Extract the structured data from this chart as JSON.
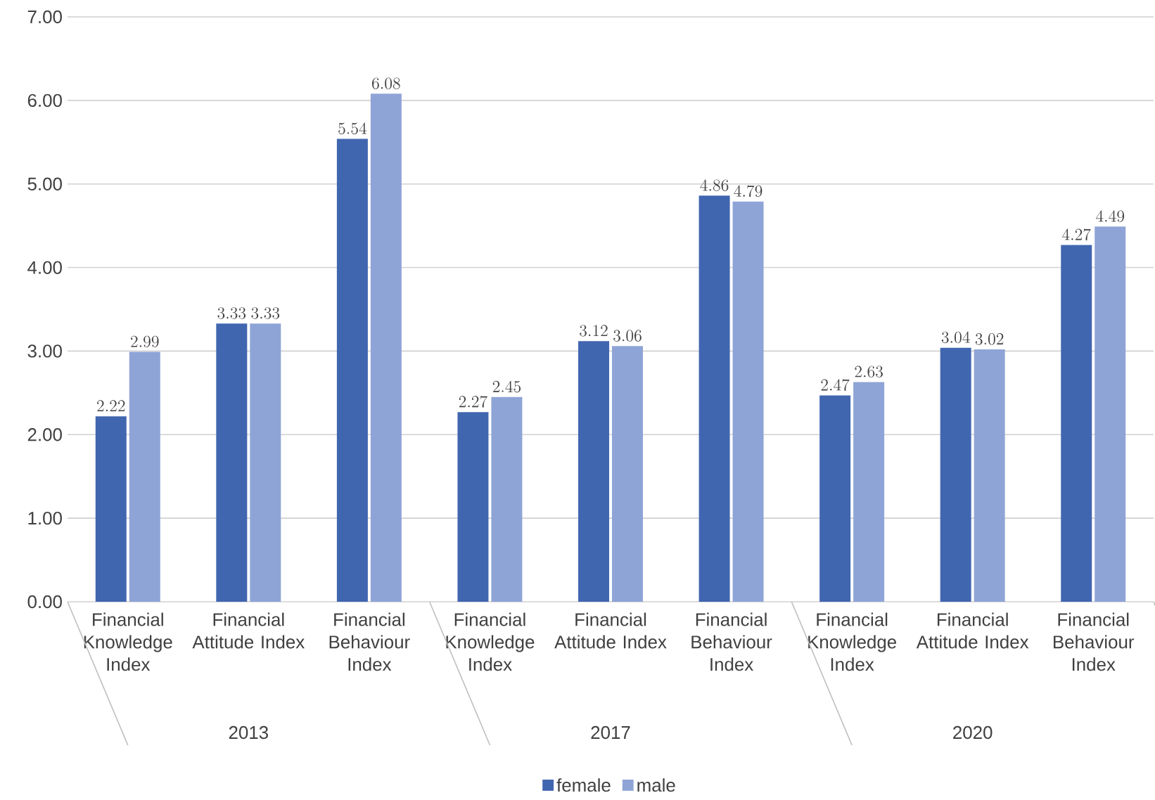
{
  "chart_data": {
    "type": "bar",
    "categories": [
      "Financial Knowledge Index",
      "Financial Attitude Index",
      "Financial Behaviour Index",
      "Financial Knowledge Index",
      "Financial Attitude Index",
      "Financial Behaviour Index",
      "Financial Knowledge Index",
      "Financial Attitude Index",
      "Financial Behaviour Index"
    ],
    "series": [
      {
        "name": "female",
        "color": "#4166b0",
        "values": [
          2.22,
          3.33,
          5.54,
          2.27,
          3.12,
          4.86,
          2.47,
          3.04,
          4.27
        ]
      },
      {
        "name": "male",
        "color": "#8fa4d6",
        "values": [
          2.99,
          3.33,
          6.08,
          2.45,
          3.06,
          4.79,
          2.63,
          3.02,
          4.49
        ]
      }
    ],
    "annotations": [
      "2013",
      "2017",
      "2020"
    ],
    "ylim": [
      0,
      7
    ],
    "yticks": [
      {
        "value": 0,
        "label": "0.00"
      },
      {
        "value": 1,
        "label": "1.00"
      },
      {
        "value": 2,
        "label": "2.00"
      },
      {
        "value": 3,
        "label": "3.00"
      },
      {
        "value": 4,
        "label": "4.00"
      },
      {
        "value": 5,
        "label": "5.00"
      },
      {
        "value": 6,
        "label": "6.00"
      },
      {
        "value": 7,
        "label": "7.00"
      }
    ],
    "grid": "y",
    "legend": "bottom",
    "data_labels": true
  }
}
